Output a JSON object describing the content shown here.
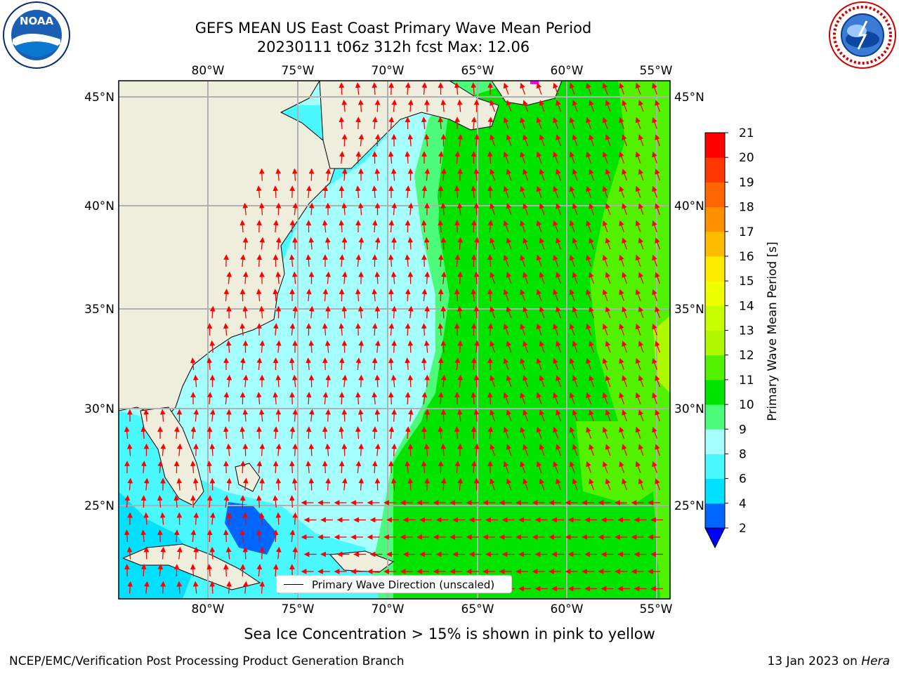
{
  "header": {
    "title_line1": "GEFS MEAN US East Coast Primary Wave Mean Period",
    "title_line2": "20230111 t06z 312h fcst   Max: 12.06"
  },
  "logos": {
    "left": {
      "icon": "noaa-logo",
      "text": "NOAA",
      "ring_text": "NATIONAL OCEANIC AND ATMOSPHERIC ADMINISTRATION · U.S. DEPARTMENT OF COMMERCE"
    },
    "right": {
      "icon": "nws-logo",
      "ring_text": "NATIONAL WEATHER SERVICE"
    }
  },
  "map": {
    "lon_labels": [
      "80°W",
      "75°W",
      "70°W",
      "65°W",
      "60°W",
      "55°W"
    ],
    "lat_labels": [
      "45°N",
      "40°N",
      "35°N",
      "30°N",
      "25°N"
    ],
    "legend_label": "Primary Wave Direction (unscaled)",
    "land_color": "#efeddc",
    "arrow_color": "#ff0000"
  },
  "colorbar": {
    "label": "Primary Wave Mean Period [s]",
    "ticks": [
      "2",
      "4",
      "6",
      "8",
      "9",
      "10",
      "11",
      "12",
      "13",
      "14",
      "15",
      "16",
      "17",
      "18",
      "19",
      "20",
      "21"
    ],
    "colors": [
      "#0066ff",
      "#00e1ff",
      "#49f9ff",
      "#a6ffff",
      "#4dfb7b",
      "#00e400",
      "#51f100",
      "#aef800",
      "#c6ff00",
      "#f0ff00",
      "#ffeb00",
      "#ffbb00",
      "#ff9000",
      "#ff6500",
      "#ff3700",
      "#ff0000"
    ],
    "under_color": "#0000ff"
  },
  "subtitle": "Sea Ice Concentration > 15% is shown in pink to yellow",
  "footer": {
    "left": "NCEP/EMC/Verification Post Processing Product Generation Branch",
    "right_date": "13 Jan 2023 on",
    "right_host": "Hera"
  }
}
